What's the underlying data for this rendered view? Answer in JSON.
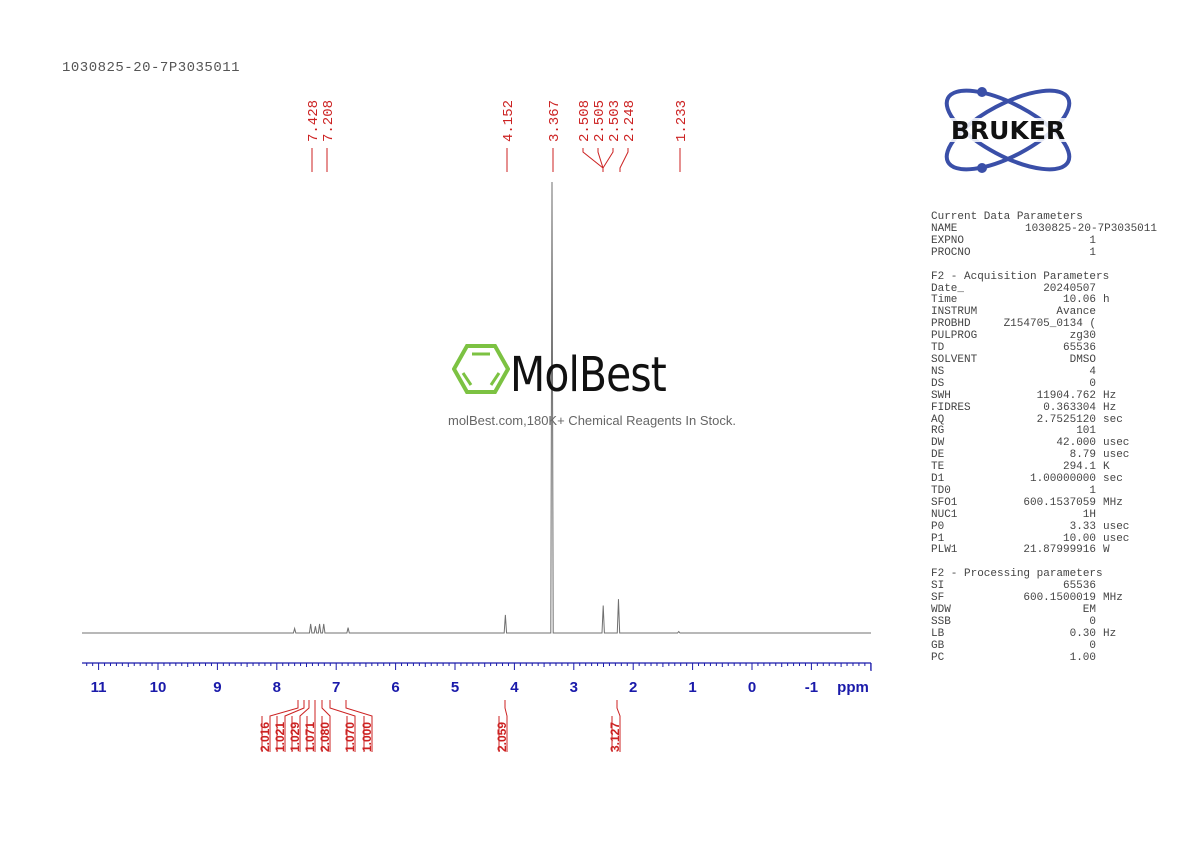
{
  "header": {
    "sample_name": "1030825-20-7P3035011"
  },
  "watermark": {
    "brand": "MolBest",
    "tagline": "molBest.com,180K+ Chemical Reagents In Stock.",
    "brand_color": "#7cc242"
  },
  "logo": {
    "text": "BRUKER",
    "color": "#3a4fa8"
  },
  "chart_data": {
    "type": "line",
    "title": "1030825-20-7P3035011",
    "xlabel": "ppm",
    "ylabel": "",
    "xlim": [
      11.3,
      -2.0
    ],
    "x_ticks": [
      11,
      10,
      9,
      8,
      7,
      6,
      5,
      4,
      3,
      2,
      1,
      0,
      -1
    ],
    "grid": false,
    "peak_labels": [
      "7.428",
      "7.208",
      "4.152",
      "3.367",
      "2.508",
      "2.505",
      "2.503",
      "2.248",
      "1.233"
    ],
    "peaks": [
      {
        "ppm": 7.7,
        "height": 0.01
      },
      {
        "ppm": 7.43,
        "height": 0.02
      },
      {
        "ppm": 7.35,
        "height": 0.015
      },
      {
        "ppm": 7.28,
        "height": 0.02
      },
      {
        "ppm": 7.21,
        "height": 0.02
      },
      {
        "ppm": 6.8,
        "height": 0.012
      },
      {
        "ppm": 4.152,
        "height": 0.04
      },
      {
        "ppm": 3.367,
        "height": 1.0
      },
      {
        "ppm": 2.505,
        "height": 0.061
      },
      {
        "ppm": 2.248,
        "height": 0.075
      },
      {
        "ppm": 1.233,
        "height": 0.002
      }
    ],
    "integrals": [
      {
        "value": "2.016",
        "ppm": 7.7
      },
      {
        "value": "1.021",
        "ppm": 7.45
      },
      {
        "value": "1.029",
        "ppm": 7.38
      },
      {
        "value": "1.071",
        "ppm": 7.3
      },
      {
        "value": "2.080",
        "ppm": 7.22
      },
      {
        "value": "1.070",
        "ppm": 7.05
      },
      {
        "value": "1.000",
        "ppm": 6.8
      },
      {
        "value": "2.059",
        "ppm": 4.15
      },
      {
        "value": "3.127",
        "ppm": 2.25
      }
    ],
    "colors": {
      "spectrum": "#707070",
      "axis": "#1a1aaa",
      "labels": "#cc2222"
    }
  },
  "parameters": {
    "current": {
      "heading": "Current Data Parameters",
      "rows": [
        [
          "NAME",
          "1030825-20-7P3035011",
          ""
        ],
        [
          "EXPNO",
          "1",
          ""
        ],
        [
          "PROCNO",
          "1",
          ""
        ]
      ]
    },
    "acquisition": {
      "heading": "F2 - Acquisition Parameters",
      "rows": [
        [
          "Date_",
          "20240507",
          ""
        ],
        [
          "Time",
          "10.06",
          "h"
        ],
        [
          "INSTRUM",
          "Avance",
          ""
        ],
        [
          "PROBHD",
          "Z154705_0134 (",
          ""
        ],
        [
          "PULPROG",
          "zg30",
          ""
        ],
        [
          "TD",
          "65536",
          ""
        ],
        [
          "SOLVENT",
          "DMSO",
          ""
        ],
        [
          "NS",
          "4",
          ""
        ],
        [
          "DS",
          "0",
          ""
        ],
        [
          "SWH",
          "11904.762",
          "Hz"
        ],
        [
          "FIDRES",
          "0.363304",
          "Hz"
        ],
        [
          "AQ",
          "2.7525120",
          "sec"
        ],
        [
          "RG",
          "101",
          ""
        ],
        [
          "DW",
          "42.000",
          "usec"
        ],
        [
          "DE",
          "8.79",
          "usec"
        ],
        [
          "TE",
          "294.1",
          "K"
        ],
        [
          "D1",
          "1.00000000",
          "sec"
        ],
        [
          "TD0",
          "1",
          ""
        ],
        [
          "SFO1",
          "600.1537059",
          "MHz"
        ],
        [
          "NUC1",
          "1H",
          ""
        ],
        [
          "P0",
          "3.33",
          "usec"
        ],
        [
          "P1",
          "10.00",
          "usec"
        ],
        [
          "PLW1",
          "21.87999916",
          "W"
        ]
      ]
    },
    "processing": {
      "heading": "F2 - Processing parameters",
      "rows": [
        [
          "SI",
          "65536",
          ""
        ],
        [
          "SF",
          "600.1500019",
          "MHz"
        ],
        [
          "WDW",
          "EM",
          ""
        ],
        [
          "SSB",
          "0",
          ""
        ],
        [
          "LB",
          "0.30",
          "Hz"
        ],
        [
          "GB",
          "0",
          ""
        ],
        [
          "PC",
          "1.00",
          ""
        ]
      ]
    }
  }
}
